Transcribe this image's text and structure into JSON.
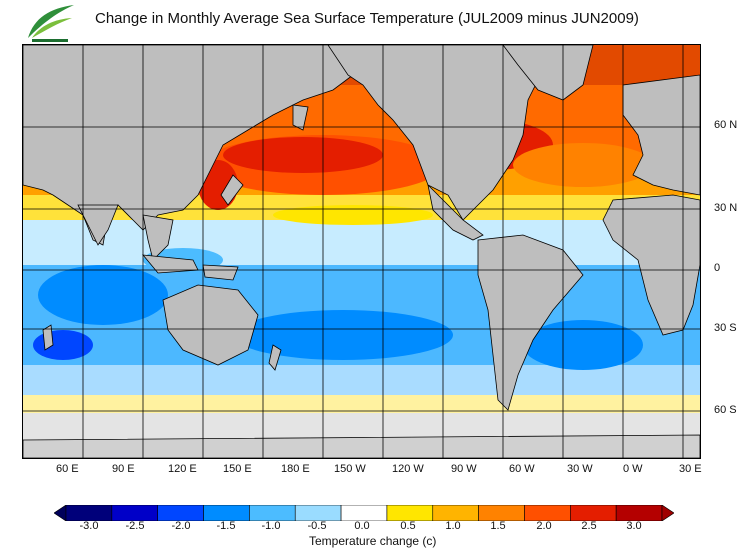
{
  "title": "Change in Monthly Average Sea Surface Temperature (JUL2009 minus JUN2009)",
  "logo": {
    "icon": "leaf-logo",
    "colors": [
      "#2f8f3a",
      "#7bbf3c",
      "#1c6e30"
    ]
  },
  "map": {
    "land_color": "#bebebe",
    "ice_color": "#e4e4e4",
    "grid_color": "#000000",
    "longitude_labels": [
      "60 E",
      "90 E",
      "120 E",
      "150 E",
      "180 E",
      "150 W",
      "120 W",
      "90 W",
      "60 W",
      "30 W",
      "0 W",
      "30 E"
    ],
    "latitude_labels": [
      "60 N",
      "30 N",
      "0",
      "30 S",
      "60 S"
    ]
  },
  "colorbar": {
    "title": "Temperature change  (c)",
    "labels": [
      "-3.0",
      "-2.5",
      "-2.0",
      "-1.5",
      "-1.0",
      "-0.5",
      "0.0",
      "0.5",
      "1.0",
      "1.5",
      "2.0",
      "2.5",
      "3.0"
    ],
    "colors": [
      "#00007a",
      "#0000c8",
      "#0046ff",
      "#008cff",
      "#4cbcff",
      "#9adcff",
      "#ffffff",
      "#ffe600",
      "#ffb400",
      "#ff8200",
      "#ff5000",
      "#e41e00",
      "#b40000"
    ],
    "end_colors": [
      "#00005a",
      "#a00000"
    ]
  }
}
